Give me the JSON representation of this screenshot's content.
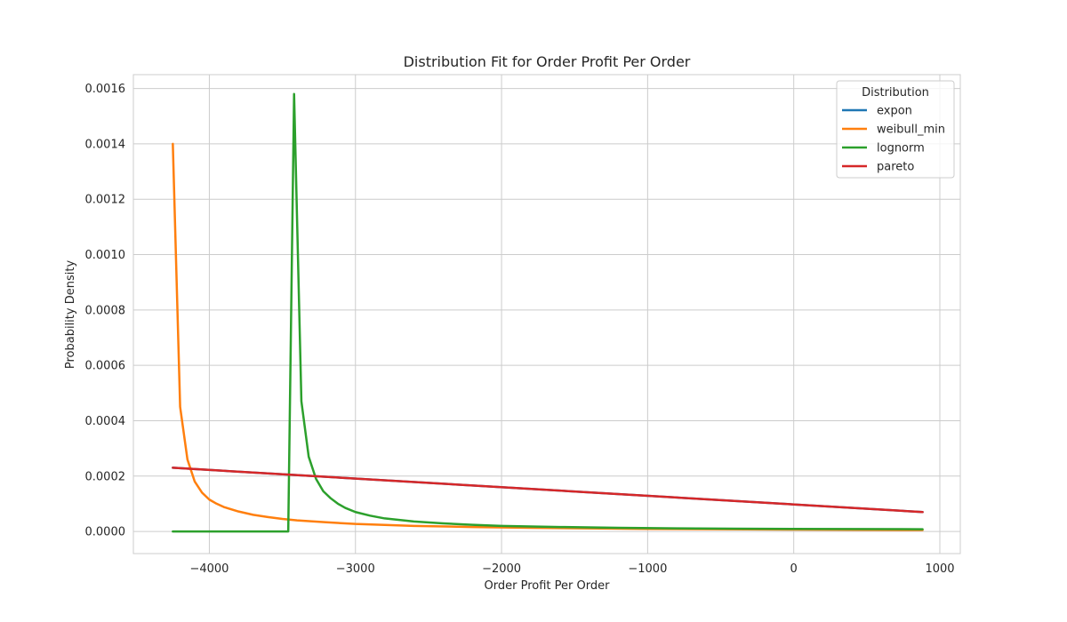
{
  "chart_data": {
    "type": "line",
    "title": "Distribution Fit for Order Profit Per Order",
    "xlabel": "Order Profit Per Order",
    "ylabel": "Probability Density",
    "xlim": [
      -4520,
      1140
    ],
    "ylim": [
      -8e-05,
      0.00165
    ],
    "x_ticks": [
      -4000,
      -3000,
      -2000,
      -1000,
      0,
      1000
    ],
    "x_tick_labels": [
      "−4000",
      "−3000",
      "−2000",
      "−1000",
      "0",
      "1000"
    ],
    "y_ticks": [
      0,
      0.0002,
      0.0004,
      0.0006,
      0.0008,
      0.001,
      0.0012,
      0.0014,
      0.0016
    ],
    "y_tick_labels": [
      "0.0000",
      "0.0002",
      "0.0004",
      "0.0006",
      "0.0008",
      "0.0010",
      "0.0012",
      "0.0014",
      "0.0016"
    ],
    "grid": true,
    "legend": {
      "title": "Distribution",
      "position": "top-right"
    },
    "series": [
      {
        "name": "expon",
        "color": "#1f77b4",
        "points": [
          [
            -4250,
            0.00023
          ],
          [
            882,
            7e-05
          ]
        ]
      },
      {
        "name": "weibull_min",
        "color": "#ff7f0e",
        "points": [
          [
            -4250,
            0.0014
          ],
          [
            -4200,
            0.00045
          ],
          [
            -4150,
            0.00026
          ],
          [
            -4100,
            0.00018
          ],
          [
            -4050,
            0.00014
          ],
          [
            -4000,
            0.000115
          ],
          [
            -3950,
            0.0001
          ],
          [
            -3900,
            8.8e-05
          ],
          [
            -3800,
            7.2e-05
          ],
          [
            -3700,
            6e-05
          ],
          [
            -3600,
            5.2e-05
          ],
          [
            -3500,
            4.5e-05
          ],
          [
            -3400,
            4e-05
          ],
          [
            -3200,
            3.3e-05
          ],
          [
            -3000,
            2.7e-05
          ],
          [
            -2600,
            2e-05
          ],
          [
            -2200,
            1.6e-05
          ],
          [
            -1800,
            1.3e-05
          ],
          [
            -1000,
            9e-06
          ],
          [
            0,
            6.5e-06
          ],
          [
            882,
            5e-06
          ]
        ]
      },
      {
        "name": "lognorm",
        "color": "#2ca02c",
        "points": [
          [
            -4250,
            0
          ],
          [
            -3460,
            0
          ],
          [
            -3420,
            0.00158
          ],
          [
            -3370,
            0.00047
          ],
          [
            -3320,
            0.00027
          ],
          [
            -3270,
            0.00019
          ],
          [
            -3220,
            0.000145
          ],
          [
            -3170,
            0.00012
          ],
          [
            -3120,
            0.0001
          ],
          [
            -3070,
            8.5e-05
          ],
          [
            -3000,
            7e-05
          ],
          [
            -2900,
            5.7e-05
          ],
          [
            -2800,
            4.7e-05
          ],
          [
            -2600,
            3.6e-05
          ],
          [
            -2400,
            2.9e-05
          ],
          [
            -2200,
            2.4e-05
          ],
          [
            -2000,
            2e-05
          ],
          [
            -1600,
            1.6e-05
          ],
          [
            -1200,
            1.3e-05
          ],
          [
            -800,
            1.1e-05
          ],
          [
            -400,
            1e-05
          ],
          [
            0,
            9e-06
          ],
          [
            400,
            8.5e-06
          ],
          [
            882,
            8e-06
          ]
        ]
      },
      {
        "name": "pareto",
        "color": "#d62728",
        "points": [
          [
            -4250,
            0.00023
          ],
          [
            882,
            7e-05
          ]
        ]
      }
    ]
  }
}
